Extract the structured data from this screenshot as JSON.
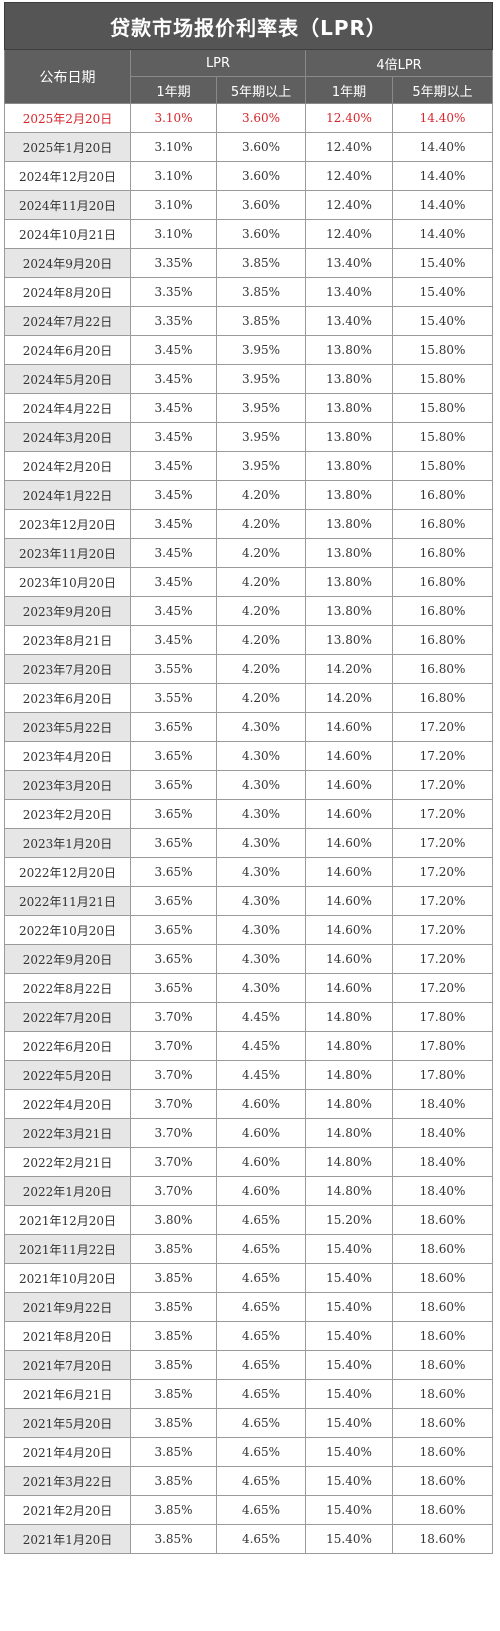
{
  "title": "贷款市场报价利率表（LPR）",
  "headers": {
    "date": "公布日期",
    "lpr": "LPR",
    "lpr4": "4倍LPR",
    "term1": "1年期",
    "term5": "5年期以上"
  },
  "colors": {
    "header_bg": "#5f5f5f",
    "highlight": "#d7262c",
    "alt_row": "#e6e6e6"
  },
  "rows": [
    {
      "date": "2025年2月20日",
      "lpr1": "3.10%",
      "lpr5": "3.60%",
      "x1": "12.40%",
      "x5": "14.40%"
    },
    {
      "date": "2025年1月20日",
      "lpr1": "3.10%",
      "lpr5": "3.60%",
      "x1": "12.40%",
      "x5": "14.40%"
    },
    {
      "date": "2024年12月20日",
      "lpr1": "3.10%",
      "lpr5": "3.60%",
      "x1": "12.40%",
      "x5": "14.40%"
    },
    {
      "date": "2024年11月20日",
      "lpr1": "3.10%",
      "lpr5": "3.60%",
      "x1": "12.40%",
      "x5": "14.40%"
    },
    {
      "date": "2024年10月21日",
      "lpr1": "3.10%",
      "lpr5": "3.60%",
      "x1": "12.40%",
      "x5": "14.40%"
    },
    {
      "date": "2024年9月20日",
      "lpr1": "3.35%",
      "lpr5": "3.85%",
      "x1": "13.40%",
      "x5": "15.40%"
    },
    {
      "date": "2024年8月20日",
      "lpr1": "3.35%",
      "lpr5": "3.85%",
      "x1": "13.40%",
      "x5": "15.40%"
    },
    {
      "date": "2024年7月22日",
      "lpr1": "3.35%",
      "lpr5": "3.85%",
      "x1": "13.40%",
      "x5": "15.40%"
    },
    {
      "date": "2024年6月20日",
      "lpr1": "3.45%",
      "lpr5": "3.95%",
      "x1": "13.80%",
      "x5": "15.80%"
    },
    {
      "date": "2024年5月20日",
      "lpr1": "3.45%",
      "lpr5": "3.95%",
      "x1": "13.80%",
      "x5": "15.80%"
    },
    {
      "date": "2024年4月22日",
      "lpr1": "3.45%",
      "lpr5": "3.95%",
      "x1": "13.80%",
      "x5": "15.80%"
    },
    {
      "date": "2024年3月20日",
      "lpr1": "3.45%",
      "lpr5": "3.95%",
      "x1": "13.80%",
      "x5": "15.80%"
    },
    {
      "date": "2024年2月20日",
      "lpr1": "3.45%",
      "lpr5": "3.95%",
      "x1": "13.80%",
      "x5": "15.80%"
    },
    {
      "date": "2024年1月22日",
      "lpr1": "3.45%",
      "lpr5": "4.20%",
      "x1": "13.80%",
      "x5": "16.80%"
    },
    {
      "date": "2023年12月20日",
      "lpr1": "3.45%",
      "lpr5": "4.20%",
      "x1": "13.80%",
      "x5": "16.80%"
    },
    {
      "date": "2023年11月20日",
      "lpr1": "3.45%",
      "lpr5": "4.20%",
      "x1": "13.80%",
      "x5": "16.80%"
    },
    {
      "date": "2023年10月20日",
      "lpr1": "3.45%",
      "lpr5": "4.20%",
      "x1": "13.80%",
      "x5": "16.80%"
    },
    {
      "date": "2023年9月20日",
      "lpr1": "3.45%",
      "lpr5": "4.20%",
      "x1": "13.80%",
      "x5": "16.80%"
    },
    {
      "date": "2023年8月21日",
      "lpr1": "3.45%",
      "lpr5": "4.20%",
      "x1": "13.80%",
      "x5": "16.80%"
    },
    {
      "date": "2023年7月20日",
      "lpr1": "3.55%",
      "lpr5": "4.20%",
      "x1": "14.20%",
      "x5": "16.80%"
    },
    {
      "date": "2023年6月20日",
      "lpr1": "3.55%",
      "lpr5": "4.20%",
      "x1": "14.20%",
      "x5": "16.80%"
    },
    {
      "date": "2023年5月22日",
      "lpr1": "3.65%",
      "lpr5": "4.30%",
      "x1": "14.60%",
      "x5": "17.20%"
    },
    {
      "date": "2023年4月20日",
      "lpr1": "3.65%",
      "lpr5": "4.30%",
      "x1": "14.60%",
      "x5": "17.20%"
    },
    {
      "date": "2023年3月20日",
      "lpr1": "3.65%",
      "lpr5": "4.30%",
      "x1": "14.60%",
      "x5": "17.20%"
    },
    {
      "date": "2023年2月20日",
      "lpr1": "3.65%",
      "lpr5": "4.30%",
      "x1": "14.60%",
      "x5": "17.20%"
    },
    {
      "date": "2023年1月20日",
      "lpr1": "3.65%",
      "lpr5": "4.30%",
      "x1": "14.60%",
      "x5": "17.20%"
    },
    {
      "date": "2022年12月20日",
      "lpr1": "3.65%",
      "lpr5": "4.30%",
      "x1": "14.60%",
      "x5": "17.20%"
    },
    {
      "date": "2022年11月21日",
      "lpr1": "3.65%",
      "lpr5": "4.30%",
      "x1": "14.60%",
      "x5": "17.20%"
    },
    {
      "date": "2022年10月20日",
      "lpr1": "3.65%",
      "lpr5": "4.30%",
      "x1": "14.60%",
      "x5": "17.20%"
    },
    {
      "date": "2022年9月20日",
      "lpr1": "3.65%",
      "lpr5": "4.30%",
      "x1": "14.60%",
      "x5": "17.20%"
    },
    {
      "date": "2022年8月22日",
      "lpr1": "3.65%",
      "lpr5": "4.30%",
      "x1": "14.60%",
      "x5": "17.20%"
    },
    {
      "date": "2022年7月20日",
      "lpr1": "3.70%",
      "lpr5": "4.45%",
      "x1": "14.80%",
      "x5": "17.80%"
    },
    {
      "date": "2022年6月20日",
      "lpr1": "3.70%",
      "lpr5": "4.45%",
      "x1": "14.80%",
      "x5": "17.80%"
    },
    {
      "date": "2022年5月20日",
      "lpr1": "3.70%",
      "lpr5": "4.45%",
      "x1": "14.80%",
      "x5": "17.80%"
    },
    {
      "date": "2022年4月20日",
      "lpr1": "3.70%",
      "lpr5": "4.60%",
      "x1": "14.80%",
      "x5": "18.40%"
    },
    {
      "date": "2022年3月21日",
      "lpr1": "3.70%",
      "lpr5": "4.60%",
      "x1": "14.80%",
      "x5": "18.40%"
    },
    {
      "date": "2022年2月21日",
      "lpr1": "3.70%",
      "lpr5": "4.60%",
      "x1": "14.80%",
      "x5": "18.40%"
    },
    {
      "date": "2022年1月20日",
      "lpr1": "3.70%",
      "lpr5": "4.60%",
      "x1": "14.80%",
      "x5": "18.40%"
    },
    {
      "date": "2021年12月20日",
      "lpr1": "3.80%",
      "lpr5": "4.65%",
      "x1": "15.20%",
      "x5": "18.60%"
    },
    {
      "date": "2021年11月22日",
      "lpr1": "3.85%",
      "lpr5": "4.65%",
      "x1": "15.40%",
      "x5": "18.60%"
    },
    {
      "date": "2021年10月20日",
      "lpr1": "3.85%",
      "lpr5": "4.65%",
      "x1": "15.40%",
      "x5": "18.60%"
    },
    {
      "date": "2021年9月22日",
      "lpr1": "3.85%",
      "lpr5": "4.65%",
      "x1": "15.40%",
      "x5": "18.60%"
    },
    {
      "date": "2021年8月20日",
      "lpr1": "3.85%",
      "lpr5": "4.65%",
      "x1": "15.40%",
      "x5": "18.60%"
    },
    {
      "date": "2021年7月20日",
      "lpr1": "3.85%",
      "lpr5": "4.65%",
      "x1": "15.40%",
      "x5": "18.60%"
    },
    {
      "date": "2021年6月21日",
      "lpr1": "3.85%",
      "lpr5": "4.65%",
      "x1": "15.40%",
      "x5": "18.60%"
    },
    {
      "date": "2021年5月20日",
      "lpr1": "3.85%",
      "lpr5": "4.65%",
      "x1": "15.40%",
      "x5": "18.60%"
    },
    {
      "date": "2021年4月20日",
      "lpr1": "3.85%",
      "lpr5": "4.65%",
      "x1": "15.40%",
      "x5": "18.60%"
    },
    {
      "date": "2021年3月22日",
      "lpr1": "3.85%",
      "lpr5": "4.65%",
      "x1": "15.40%",
      "x5": "18.60%"
    },
    {
      "date": "2021年2月20日",
      "lpr1": "3.85%",
      "lpr5": "4.65%",
      "x1": "15.40%",
      "x5": "18.60%"
    },
    {
      "date": "2021年1月20日",
      "lpr1": "3.85%",
      "lpr5": "4.65%",
      "x1": "15.40%",
      "x5": "18.60%"
    }
  ]
}
